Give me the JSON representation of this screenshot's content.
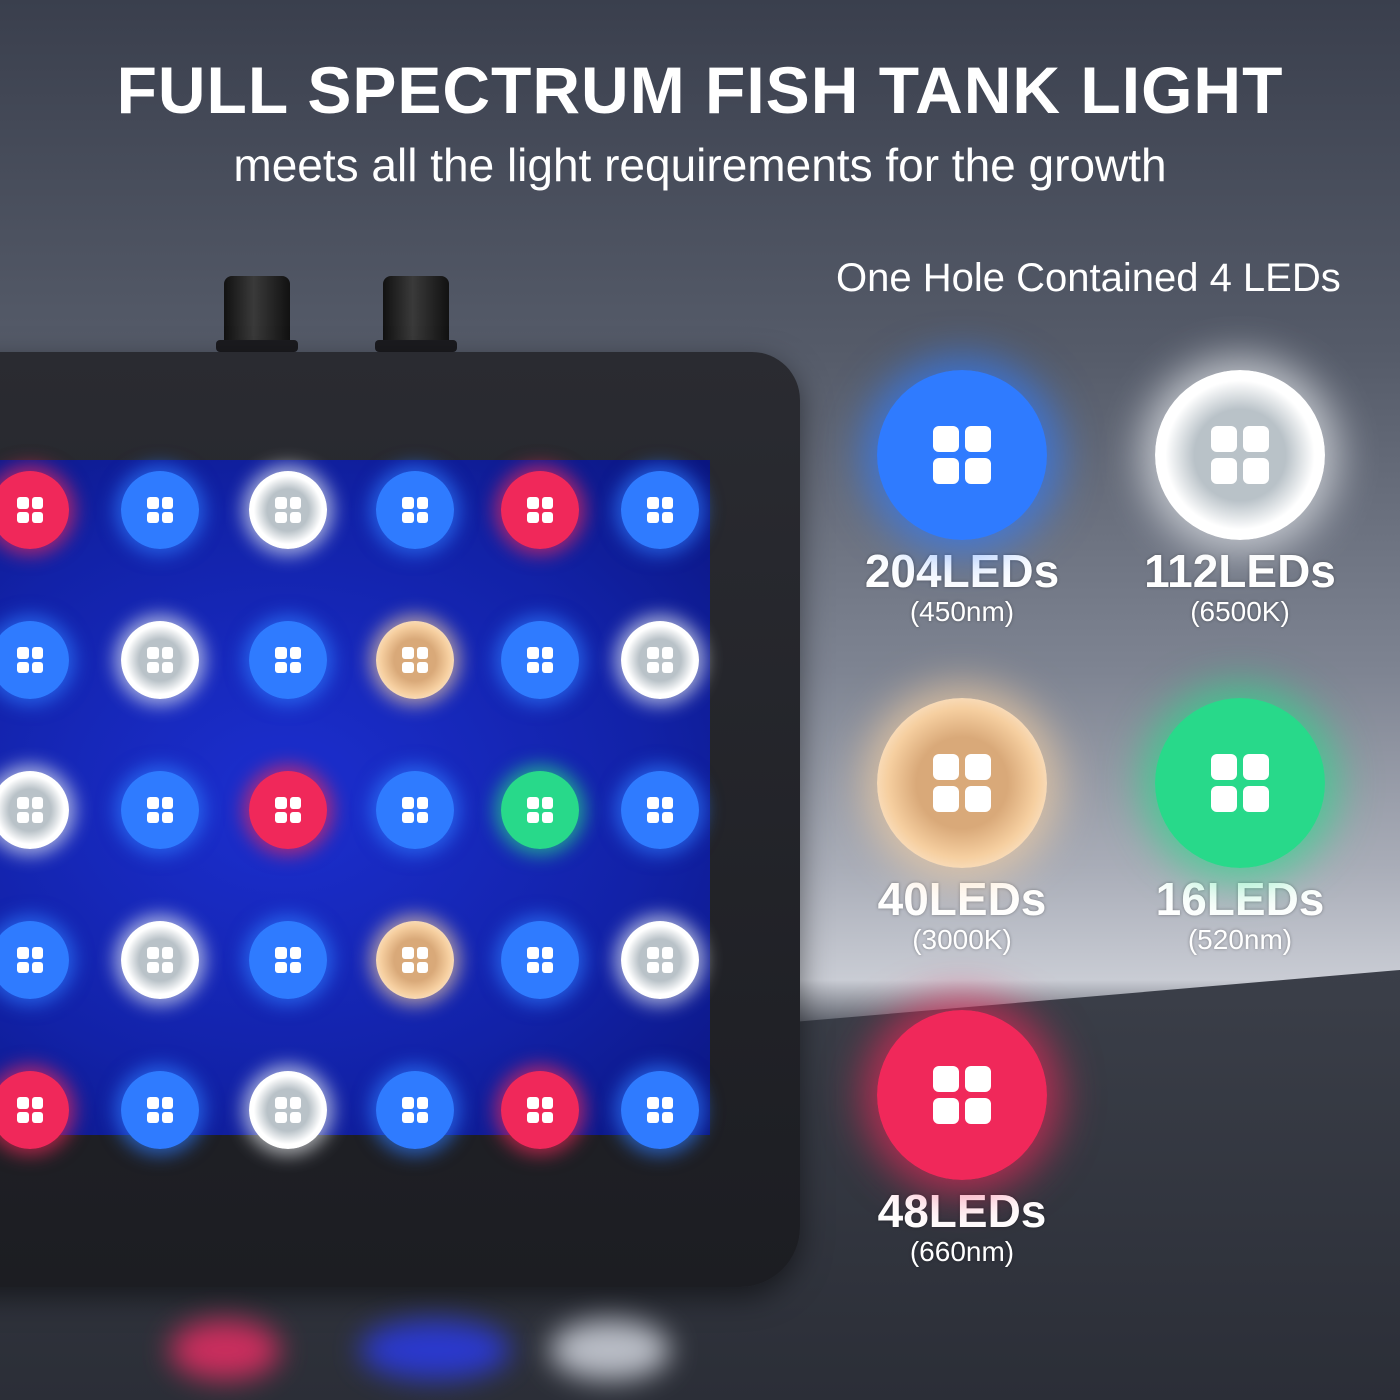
{
  "header": {
    "title": "FULL SPECTRUM FISH TANK LIGHT",
    "subtitle": "meets all the light requirements for the growth"
  },
  "note": "One Hole Contained 4 LEDs",
  "colors": {
    "blue": "#2f7bff",
    "white": "#eef2f5",
    "warm": "#f6cfa0",
    "green": "#28d98a",
    "red": "#f0285a",
    "panel": "#1a2bc4"
  },
  "led_grid": [
    [
      "red",
      "blue",
      "white",
      "blue",
      "red",
      "blue"
    ],
    [
      "blue",
      "white",
      "blue",
      "warm",
      "blue",
      "white"
    ],
    [
      "white",
      "blue",
      "red",
      "blue",
      "green",
      "blue"
    ],
    [
      "blue",
      "white",
      "blue",
      "warm",
      "blue",
      "white"
    ],
    [
      "red",
      "blue",
      "white",
      "blue",
      "red",
      "blue"
    ]
  ],
  "legend": [
    {
      "color": "blue",
      "count": "204LEDs",
      "spec": "(450nm)"
    },
    {
      "color": "white",
      "count": "112LEDs",
      "spec": "(6500K)"
    },
    {
      "color": "warm",
      "count": "40LEDs",
      "spec": "(3000K)"
    },
    {
      "color": "green",
      "count": "16LEDs",
      "spec": "(520nm)"
    },
    {
      "color": "red",
      "count": "48LEDs",
      "spec": "(660nm)"
    }
  ]
}
